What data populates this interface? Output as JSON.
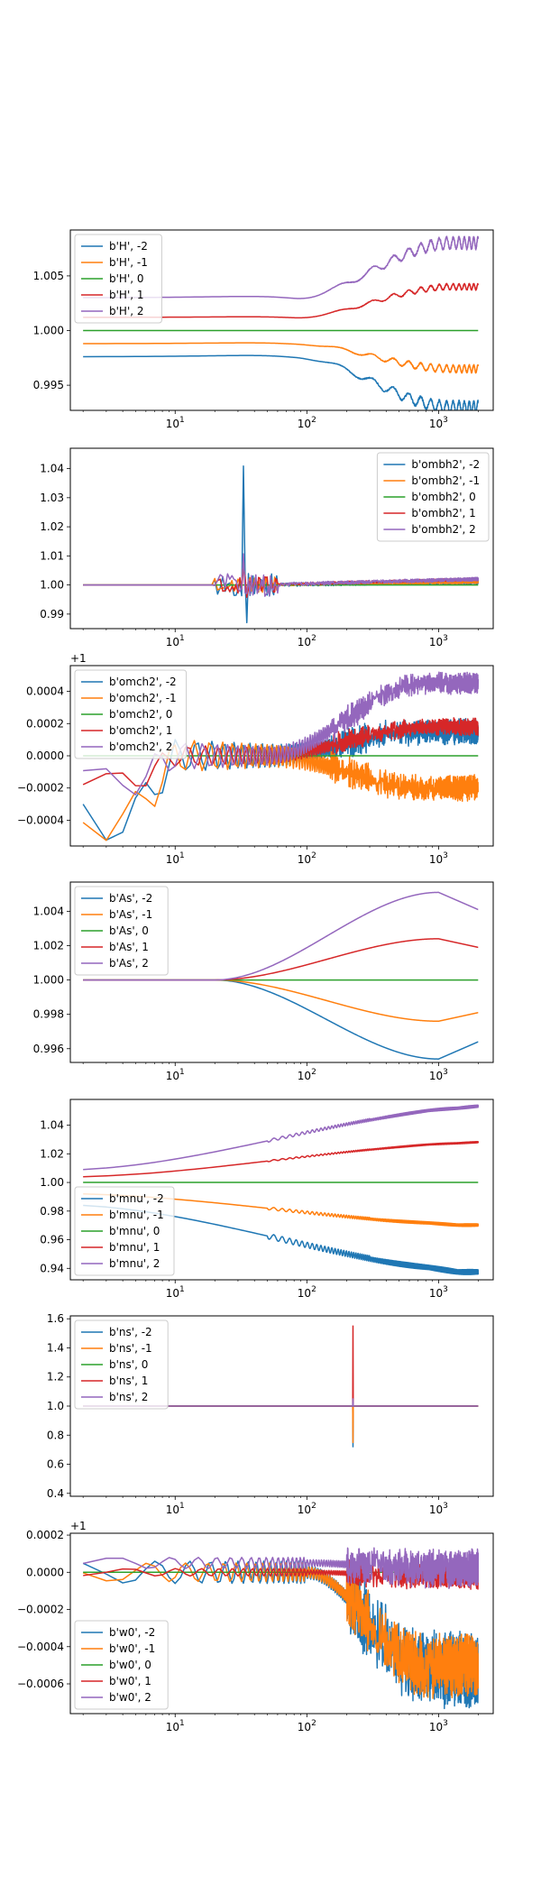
{
  "colors": [
    "#1f77b4",
    "#ff7f0e",
    "#2ca02c",
    "#d62728",
    "#9467bd"
  ],
  "chart_data": [
    {
      "type": "line",
      "xscale": "log",
      "xlim": [
        1.6,
        2600
      ],
      "ylim": [
        0.9927,
        1.0092
      ],
      "yticks": [
        0.995,
        1.0,
        1.005
      ],
      "ytick_labels": [
        "0.995",
        "1.000",
        "1.005"
      ],
      "xticks": [
        10,
        100,
        1000
      ],
      "xtick_labels": [
        "10^1",
        "10^2",
        "10^3"
      ],
      "offset_text": "",
      "legend_loc": "upper left",
      "shape": "smooth_slope",
      "series": [
        {
          "name": "b'H', -2",
          "base": 0.9976,
          "end": 0.993,
          "wiggle": 0.0004
        },
        {
          "name": "b'H', -1",
          "base": 0.9988,
          "end": 0.9965,
          "wiggle": 0.00025
        },
        {
          "name": "b'H', 0",
          "base": 1.0,
          "end": 1.0,
          "wiggle": 0
        },
        {
          "name": "b'H', 1",
          "base": 1.0012,
          "end": 1.004,
          "wiggle": 0.0002
        },
        {
          "name": "b'H', 2",
          "base": 1.003,
          "end": 1.008,
          "wiggle": 0.0004
        }
      ]
    },
    {
      "type": "line",
      "xscale": "log",
      "xlim": [
        1.6,
        2600
      ],
      "ylim": [
        0.985,
        1.047
      ],
      "yticks": [
        0.99,
        1.0,
        1.01,
        1.02,
        1.03,
        1.04
      ],
      "ytick_labels": [
        "0.99",
        "1.00",
        "1.01",
        "1.02",
        "1.03",
        "1.04"
      ],
      "xticks": [
        10,
        100,
        1000
      ],
      "xtick_labels": [
        "10^1",
        "10^2",
        "10^3"
      ],
      "offset_text": "",
      "legend_loc": "upper right",
      "shape": "spike_30",
      "series": [
        {
          "name": "b'ombh2', -2",
          "base": 1.0,
          "end": 1.001,
          "spike": 0.042,
          "wiggle": 0.002
        },
        {
          "name": "b'ombh2', -1",
          "base": 1.0,
          "end": 1.001,
          "spike": 0.01,
          "wiggle": 0.0015
        },
        {
          "name": "b'ombh2', 0",
          "base": 1.0,
          "end": 1.0,
          "spike": 0,
          "wiggle": 0
        },
        {
          "name": "b'ombh2', 1",
          "base": 1.0,
          "end": 1.002,
          "spike": 0.008,
          "wiggle": 0.0015
        },
        {
          "name": "b'ombh2', 2",
          "base": 1.0,
          "end": 1.002,
          "spike": 0.014,
          "wiggle": 0.002
        }
      ]
    },
    {
      "type": "line",
      "xscale": "log",
      "xlim": [
        1.6,
        2600
      ],
      "ylim": [
        -0.00056,
        0.00056
      ],
      "yticks": [
        -0.0004,
        -0.0002,
        0.0,
        0.0002,
        0.0004
      ],
      "ytick_labels": [
        "−0.0004",
        "−0.0002",
        "0.0000",
        "0.0002",
        "0.0004"
      ],
      "xticks": [
        10,
        100,
        1000
      ],
      "xtick_labels": [
        "10^1",
        "10^2",
        "10^3"
      ],
      "offset_text": "+1",
      "legend_loc": "upper left",
      "shape": "oscillation",
      "series": [
        {
          "name": "b'omch2', -2",
          "base": 0.0,
          "end": 0.00015,
          "wiggle": 0.00012
        },
        {
          "name": "b'omch2', -1",
          "base": 0.0,
          "end": -0.0002,
          "wiggle": 0.00012
        },
        {
          "name": "b'omch2', 0",
          "base": 0.0,
          "end": 0.0,
          "wiggle": 0
        },
        {
          "name": "b'omch2', 1",
          "base": 0.0,
          "end": 0.00018,
          "wiggle": 8e-05
        },
        {
          "name": "b'omch2', 2",
          "base": 0.0,
          "end": 0.00045,
          "wiggle": 0.0001
        }
      ]
    },
    {
      "type": "line",
      "xscale": "log",
      "xlim": [
        1.6,
        2600
      ],
      "ylim": [
        0.9952,
        1.0057
      ],
      "yticks": [
        0.996,
        0.998,
        1.0,
        1.002,
        1.004
      ],
      "ytick_labels": [
        "0.996",
        "0.998",
        "1.000",
        "1.002",
        "1.004"
      ],
      "xticks": [
        10,
        100,
        1000
      ],
      "xtick_labels": [
        "10^1",
        "10^2",
        "10^3"
      ],
      "offset_text": "",
      "legend_loc": "upper left",
      "shape": "hump",
      "series": [
        {
          "name": "b'As', -2",
          "peak": 0.9954,
          "end": 0.9964
        },
        {
          "name": "b'As', -1",
          "peak": 0.9976,
          "end": 0.9981
        },
        {
          "name": "b'As', 0",
          "peak": 1.0,
          "end": 1.0
        },
        {
          "name": "b'As', 1",
          "peak": 1.0024,
          "end": 1.0019
        },
        {
          "name": "b'As', 2",
          "peak": 1.0051,
          "end": 1.0041
        }
      ]
    },
    {
      "type": "line",
      "xscale": "log",
      "xlim": [
        1.6,
        2600
      ],
      "ylim": [
        0.932,
        1.058
      ],
      "yticks": [
        0.94,
        0.96,
        0.98,
        1.0,
        1.02,
        1.04
      ],
      "ytick_labels": [
        "0.94",
        "0.96",
        "0.98",
        "1.00",
        "1.02",
        "1.04"
      ],
      "xticks": [
        10,
        100,
        1000
      ],
      "xtick_labels": [
        "10^1",
        "10^2",
        "10^3"
      ],
      "offset_text": "",
      "legend_loc": "lower left",
      "shape": "drift",
      "series": [
        {
          "name": "b'mnu', -2",
          "start": 0.984,
          "end": 0.937,
          "wiggle": 0.002
        },
        {
          "name": "b'mnu', -1",
          "start": 0.992,
          "end": 0.97,
          "wiggle": 0.001
        },
        {
          "name": "b'mnu', 0",
          "start": 1.0,
          "end": 1.0,
          "wiggle": 0
        },
        {
          "name": "b'mnu', 1",
          "start": 1.004,
          "end": 1.028,
          "wiggle": 0.0005
        },
        {
          "name": "b'mnu', 2",
          "start": 1.009,
          "end": 1.053,
          "wiggle": 0.001
        }
      ]
    },
    {
      "type": "line",
      "xscale": "log",
      "xlim": [
        1.6,
        2600
      ],
      "ylim": [
        0.38,
        1.62
      ],
      "yticks": [
        0.4,
        0.6,
        0.8,
        1.0,
        1.2,
        1.4,
        1.6
      ],
      "ytick_labels": [
        "0.4",
        "0.6",
        "0.8",
        "1.0",
        "1.2",
        "1.4",
        "1.6"
      ],
      "xticks": [
        10,
        100,
        1000
      ],
      "xtick_labels": [
        "10^1",
        "10^2",
        "10^3"
      ],
      "offset_text": "",
      "legend_loc": "upper left",
      "shape": "spike_220",
      "series": [
        {
          "name": "b'ns', -2",
          "base": 1.0,
          "spike": 0.72
        },
        {
          "name": "b'ns', -1",
          "base": 1.0,
          "spike": 0.75
        },
        {
          "name": "b'ns', 0",
          "base": 1.0,
          "spike": 1.0
        },
        {
          "name": "b'ns', 1",
          "base": 1.0,
          "spike": 1.55
        },
        {
          "name": "b'ns', 2",
          "base": 1.0,
          "spike": 1.05
        }
      ]
    },
    {
      "type": "line",
      "xscale": "log",
      "xlim": [
        1.6,
        2600
      ],
      "ylim": [
        -0.00076,
        0.00021
      ],
      "yticks": [
        -0.0006,
        -0.0004,
        -0.0002,
        0.0,
        0.0002
      ],
      "ytick_labels": [
        "−0.0006",
        "−0.0004",
        "−0.0002",
        "0.0000",
        "0.0002"
      ],
      "xticks": [
        10,
        100,
        1000
      ],
      "xtick_labels": [
        "10^1",
        "10^2",
        "10^3"
      ],
      "offset_text": "+1",
      "legend_loc": "lower left",
      "shape": "w0",
      "series": [
        {
          "name": "b'w0', -2",
          "base": 0.0,
          "low": -0.00052,
          "wiggle": 0.00012
        },
        {
          "name": "b'w0', -1",
          "base": 0.0,
          "low": -0.0005,
          "wiggle": 0.0001
        },
        {
          "name": "b'w0', 0",
          "base": 0.0,
          "low": 0.0,
          "wiggle": 0
        },
        {
          "name": "b'w0', 1",
          "base": 0.0,
          "low": -2e-05,
          "wiggle": 4e-05
        },
        {
          "name": "b'w0', 2",
          "base": 5e-05,
          "low": -3e-05,
          "wiggle": 6e-05
        }
      ]
    }
  ]
}
